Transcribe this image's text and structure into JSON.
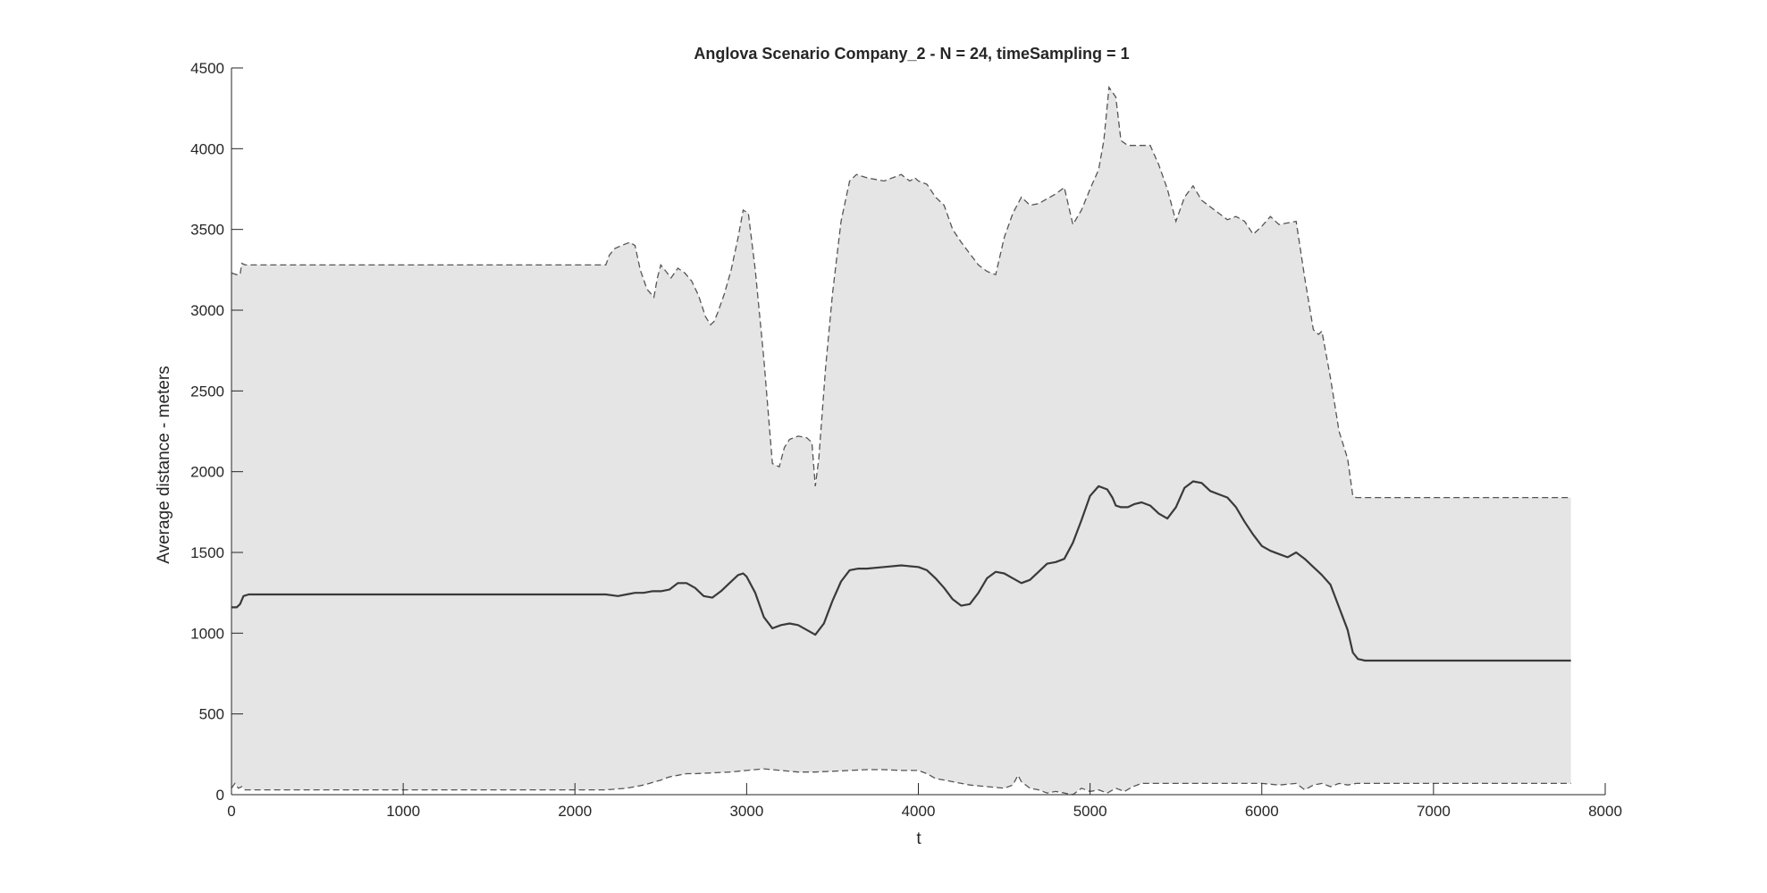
{
  "chart_data": {
    "type": "area",
    "title": "Anglova Scenario Company_2 - N = 24, timeSampling = 1",
    "xlabel": "t",
    "ylabel": "Average distance - meters",
    "xlim": [
      0,
      8000
    ],
    "ylim": [
      0,
      4500
    ],
    "xticks": [
      0,
      1000,
      2000,
      3000,
      4000,
      5000,
      6000,
      7000,
      8000
    ],
    "yticks": [
      0,
      500,
      1000,
      1500,
      2000,
      2500,
      3000,
      3500,
      4000,
      4500
    ],
    "grid": false,
    "legend": "none",
    "colors": {
      "band_fill": "#e5e5e5",
      "mean_line": "#3a3a3a",
      "bound_line": "#555555",
      "axis": "#262626"
    },
    "series": [
      {
        "role": "max (dashed)",
        "x": [
          0,
          30,
          50,
          60,
          80,
          2180,
          2200,
          2230,
          2270,
          2320,
          2350,
          2380,
          2420,
          2460,
          2480,
          2500,
          2530,
          2560,
          2600,
          2640,
          2680,
          2720,
          2760,
          2790,
          2810,
          2830,
          2870,
          2910,
          2950,
          2980,
          3010,
          3050,
          3100,
          3150,
          3190,
          3220,
          3250,
          3300,
          3350,
          3380,
          3400,
          3420,
          3460,
          3500,
          3550,
          3600,
          3640,
          3700,
          3750,
          3800,
          3900,
          3950,
          3980,
          4000,
          4050,
          4100,
          4150,
          4200,
          4250,
          4300,
          4350,
          4400,
          4450,
          4500,
          4550,
          4600,
          4650,
          4700,
          4800,
          4850,
          4900,
          4950,
          5000,
          5050,
          5080,
          5110,
          5150,
          5180,
          5220,
          5300,
          5350,
          5400,
          5450,
          5500,
          5550,
          5600,
          5650,
          5700,
          5750,
          5800,
          5850,
          5900,
          5950,
          6000,
          6050,
          6100,
          6150,
          6200,
          6250,
          6300,
          6330,
          6350,
          6400,
          6450,
          6500,
          6530,
          6550,
          7800
        ],
        "y": [
          3230,
          3220,
          3220,
          3290,
          3280,
          3280,
          3340,
          3380,
          3400,
          3420,
          3400,
          3250,
          3130,
          3080,
          3200,
          3280,
          3240,
          3200,
          3260,
          3230,
          3180,
          3090,
          2960,
          2910,
          2930,
          2980,
          3100,
          3250,
          3450,
          3620,
          3600,
          3250,
          2700,
          2050,
          2030,
          2150,
          2200,
          2220,
          2210,
          2180,
          1910,
          2080,
          2650,
          3100,
          3550,
          3800,
          3840,
          3820,
          3810,
          3800,
          3840,
          3800,
          3820,
          3800,
          3780,
          3700,
          3650,
          3500,
          3420,
          3350,
          3280,
          3240,
          3220,
          3450,
          3600,
          3700,
          3650,
          3660,
          3720,
          3760,
          3530,
          3620,
          3750,
          3870,
          4050,
          4380,
          4320,
          4050,
          4020,
          4020,
          4020,
          3900,
          3750,
          3550,
          3700,
          3770,
          3680,
          3640,
          3600,
          3560,
          3580,
          3550,
          3470,
          3520,
          3580,
          3530,
          3540,
          3550,
          3200,
          2880,
          2850,
          2870,
          2580,
          2250,
          2080,
          1850,
          1840,
          1840
        ]
      },
      {
        "role": "mean (solid)",
        "x": [
          0,
          30,
          50,
          70,
          100,
          2180,
          2250,
          2300,
          2350,
          2400,
          2450,
          2500,
          2550,
          2600,
          2650,
          2700,
          2750,
          2800,
          2850,
          2900,
          2950,
          2980,
          3000,
          3050,
          3100,
          3150,
          3200,
          3250,
          3300,
          3350,
          3400,
          3450,
          3500,
          3550,
          3600,
          3650,
          3700,
          3800,
          3900,
          4000,
          4050,
          4100,
          4150,
          4200,
          4250,
          4300,
          4350,
          4400,
          4450,
          4500,
          4550,
          4600,
          4650,
          4700,
          4750,
          4800,
          4850,
          4900,
          4950,
          5000,
          5050,
          5100,
          5130,
          5150,
          5180,
          5220,
          5260,
          5300,
          5350,
          5400,
          5450,
          5500,
          5550,
          5600,
          5650,
          5700,
          5750,
          5800,
          5850,
          5900,
          5950,
          6000,
          6050,
          6100,
          6150,
          6200,
          6250,
          6300,
          6330,
          6350,
          6400,
          6450,
          6500,
          6530,
          6560,
          6600,
          7800
        ],
        "y": [
          1160,
          1160,
          1180,
          1230,
          1240,
          1240,
          1230,
          1240,
          1250,
          1250,
          1260,
          1260,
          1270,
          1310,
          1310,
          1280,
          1230,
          1220,
          1260,
          1310,
          1360,
          1370,
          1350,
          1250,
          1100,
          1030,
          1050,
          1060,
          1050,
          1020,
          990,
          1060,
          1200,
          1320,
          1390,
          1400,
          1400,
          1410,
          1420,
          1410,
          1390,
          1340,
          1280,
          1210,
          1170,
          1180,
          1250,
          1340,
          1380,
          1370,
          1340,
          1310,
          1330,
          1380,
          1430,
          1440,
          1460,
          1560,
          1700,
          1850,
          1910,
          1890,
          1840,
          1790,
          1780,
          1780,
          1800,
          1810,
          1790,
          1740,
          1710,
          1780,
          1900,
          1940,
          1930,
          1880,
          1860,
          1840,
          1780,
          1690,
          1610,
          1540,
          1510,
          1490,
          1470,
          1500,
          1460,
          1410,
          1380,
          1360,
          1300,
          1160,
          1020,
          880,
          840,
          830,
          830
        ]
      },
      {
        "role": "min (dashed)",
        "x": [
          0,
          20,
          40,
          60,
          80,
          100,
          2180,
          2300,
          2400,
          2500,
          2550,
          2600,
          2650,
          2700,
          2800,
          2900,
          3000,
          3100,
          3200,
          3300,
          3400,
          3500,
          3600,
          3700,
          3800,
          3900,
          4000,
          4050,
          4100,
          4200,
          4300,
          4400,
          4500,
          4550,
          4580,
          4600,
          4650,
          4700,
          4750,
          4800,
          4850,
          4900,
          4950,
          5000,
          5050,
          5100,
          5150,
          5200,
          5250,
          5300,
          5350,
          6000,
          6100,
          6200,
          6250,
          6300,
          6350,
          6400,
          6450,
          6500,
          6550,
          7800
        ],
        "y": [
          40,
          70,
          40,
          50,
          30,
          30,
          30,
          40,
          60,
          90,
          110,
          120,
          130,
          130,
          135,
          140,
          150,
          160,
          150,
          140,
          140,
          145,
          150,
          155,
          155,
          150,
          150,
          130,
          100,
          80,
          60,
          50,
          40,
          60,
          120,
          80,
          40,
          30,
          10,
          20,
          10,
          0,
          40,
          20,
          30,
          10,
          40,
          20,
          50,
          70,
          70,
          70,
          60,
          70,
          30,
          60,
          70,
          50,
          70,
          60,
          70,
          70
        ]
      }
    ]
  }
}
